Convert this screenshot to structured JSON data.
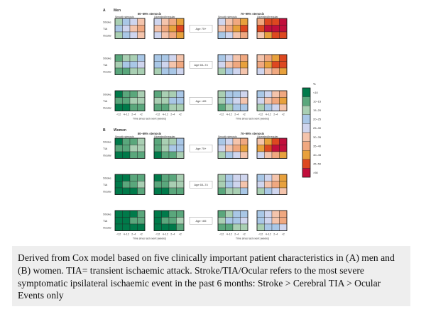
{
  "caption": "Derived from Cox model based on five clinically important patient characteristics in (A) men and (B) women. TIA= transient ischaemic attack. Stroke/TIA/Ocular refers to the most severe symptomatic ipsilateral ischaemic event in the past 6 months: Stroke > Cerebral TIA > Ocular Events only",
  "chart_data": {
    "type": "heatmap",
    "panels": [
      {
        "letter": "A",
        "title": "Men",
        "group_headers": [
          "50–69% stenosis",
          "70–99% stenosis"
        ]
      },
      {
        "letter": "B",
        "title": "Women",
        "group_headers": [
          "50–69% stenosis",
          "70–99% stenosis"
        ]
      }
    ],
    "column_groups": [
      "Smooth stenosis",
      "Ulcerated/irregular",
      "Smooth stenosis",
      "Ulcerated/irregular"
    ],
    "row_labels": [
      "Stroke",
      "TIA",
      "Ocular"
    ],
    "age_labels": [
      "Age 75+",
      "Age 65–74",
      "Age <65"
    ],
    "x_ticks": [
      "<12",
      "4–12",
      "2–4",
      "<2"
    ],
    "x_label": "Time since last event (weeks)",
    "legend": {
      "title": "%",
      "labels": [
        "<10",
        "10–15",
        "15–20",
        "20–25",
        "25–30",
        "30–35",
        "35–40",
        "40–45",
        "45–50",
        ">50"
      ],
      "colors": [
        "#007a4a",
        "#5aa77c",
        "#a9cfb3",
        "#a9c7e6",
        "#cfd5ee",
        "#f4c4ac",
        "#f0a880",
        "#e8a13c",
        "#dd4820",
        "#c10f3c"
      ]
    },
    "values": {
      "A": {
        "Age 75+": [
          [
            [
              2,
              3,
              4,
              5
            ],
            [
              3,
              4,
              5,
              6
            ],
            [
              2,
              3,
              4,
              5
            ]
          ],
          [
            [
              4,
              5,
              6,
              7
            ],
            [
              5,
              6,
              7,
              8
            ],
            [
              4,
              5,
              6,
              7
            ]
          ],
          [
            [
              4,
              5,
              6,
              7
            ],
            [
              5,
              6,
              7,
              8
            ],
            [
              3,
              4,
              5,
              6
            ]
          ],
          [
            [
              6,
              8,
              8,
              9
            ],
            [
              8,
              9,
              9,
              9
            ],
            [
              5,
              7,
              8,
              8
            ]
          ]
        ],
        "Age 65–74": [
          [
            [
              1,
              2,
              2,
              3
            ],
            [
              2,
              3,
              3,
              4
            ],
            [
              1,
              1,
              2,
              2
            ]
          ],
          [
            [
              3,
              3,
              4,
              5
            ],
            [
              3,
              4,
              5,
              6
            ],
            [
              2,
              3,
              3,
              4
            ]
          ],
          [
            [
              3,
              4,
              5,
              6
            ],
            [
              4,
              5,
              6,
              7
            ],
            [
              2,
              3,
              4,
              5
            ]
          ],
          [
            [
              5,
              6,
              7,
              8
            ],
            [
              6,
              7,
              8,
              8
            ],
            [
              4,
              5,
              6,
              7
            ]
          ]
        ],
        "Age <65": [
          [
            [
              0,
              1,
              1,
              2
            ],
            [
              1,
              1,
              2,
              2
            ],
            [
              0,
              0,
              1,
              1
            ]
          ],
          [
            [
              1,
              2,
              2,
              3
            ],
            [
              2,
              2,
              3,
              3
            ],
            [
              1,
              1,
              2,
              2
            ]
          ],
          [
            [
              2,
              3,
              3,
              4
            ],
            [
              2,
              3,
              4,
              5
            ],
            [
              1,
              2,
              3,
              3
            ]
          ],
          [
            [
              3,
              4,
              5,
              6
            ],
            [
              4,
              5,
              6,
              7
            ],
            [
              2,
              3,
              4,
              5
            ]
          ]
        ]
      },
      "B": {
        "Age 75+": [
          [
            [
              0,
              1,
              1,
              2
            ],
            [
              1,
              1,
              2,
              2
            ],
            [
              0,
              0,
              1,
              1
            ]
          ],
          [
            [
              1,
              2,
              2,
              3
            ],
            [
              1,
              2,
              3,
              3
            ],
            [
              0,
              1,
              1,
              2
            ]
          ],
          [
            [
              3,
              4,
              5,
              6
            ],
            [
              4,
              5,
              6,
              7
            ],
            [
              2,
              3,
              4,
              5
            ]
          ],
          [
            [
              5,
              7,
              8,
              9
            ],
            [
              7,
              8,
              9,
              9
            ],
            [
              4,
              5,
              6,
              7
            ]
          ]
        ],
        "Age 65–74": [
          [
            [
              0,
              0,
              1,
              1
            ],
            [
              0,
              1,
              1,
              2
            ],
            [
              0,
              0,
              0,
              1
            ]
          ],
          [
            [
              0,
              1,
              1,
              2
            ],
            [
              1,
              1,
              2,
              2
            ],
            [
              0,
              0,
              1,
              1
            ]
          ],
          [
            [
              2,
              3,
              4,
              4
            ],
            [
              2,
              3,
              4,
              5
            ],
            [
              1,
              2,
              2,
              3
            ]
          ],
          [
            [
              3,
              4,
              5,
              7
            ],
            [
              4,
              5,
              6,
              7
            ],
            [
              2,
              3,
              4,
              5
            ]
          ]
        ],
        "Age <65": [
          [
            [
              0,
              0,
              0,
              1
            ],
            [
              0,
              0,
              1,
              1
            ],
            [
              0,
              0,
              0,
              0
            ]
          ],
          [
            [
              0,
              0,
              1,
              1
            ],
            [
              0,
              1,
              1,
              2
            ],
            [
              0,
              0,
              0,
              1
            ]
          ],
          [
            [
              1,
              2,
              3,
              3
            ],
            [
              2,
              3,
              3,
              4
            ],
            [
              1,
              1,
              2,
              2
            ]
          ],
          [
            [
              3,
              4,
              5,
              6
            ],
            [
              3,
              4,
              5,
              6
            ],
            [
              2,
              3,
              3,
              4
            ]
          ]
        ]
      }
    }
  }
}
